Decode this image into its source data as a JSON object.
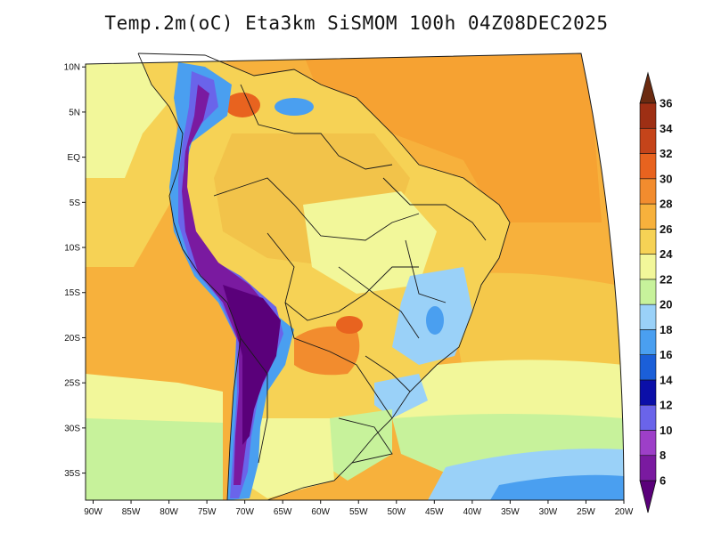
{
  "title": "Temp.2m(oC) Eta3km SiSMOM 100h 04Z08DEC2025",
  "map": {
    "lat_labels": [
      "10N",
      "5N",
      "EQ",
      "5S",
      "10S",
      "15S",
      "20S",
      "25S",
      "30S",
      "35S"
    ],
    "lat_values": [
      10,
      5,
      0,
      -5,
      -10,
      -15,
      -20,
      -25,
      -30,
      -35
    ],
    "lon_labels": [
      "90W",
      "85W",
      "80W",
      "75W",
      "70W",
      "65W",
      "60W",
      "55W",
      "50W",
      "45W",
      "40W",
      "35W",
      "30W",
      "25W",
      "20W"
    ],
    "lon_values": [
      -90,
      -85,
      -80,
      -75,
      -70,
      -65,
      -60,
      -55,
      -50,
      -45,
      -40,
      -35,
      -30,
      -25,
      -20
    ],
    "lat_range": [
      -38,
      11.5
    ],
    "lon_range": [
      -91,
      -20
    ]
  },
  "colorbar": {
    "labels": [
      "6",
      "8",
      "10",
      "12",
      "14",
      "16",
      "18",
      "20",
      "22",
      "24",
      "26",
      "28",
      "30",
      "32",
      "34",
      "36"
    ],
    "colors": [
      "#5a007a",
      "#7a1aa0",
      "#9d3fc8",
      "#6a64ea",
      "#0b0fa8",
      "#1b5fd8",
      "#4a9ff0",
      "#9ad1f8",
      "#c7f29b",
      "#f2f79a",
      "#f6d255",
      "#f7b13c",
      "#f28c2e",
      "#e8631f",
      "#c5441a",
      "#9e2f14",
      "#6b2a10"
    ]
  },
  "colors": {
    "land_outline": "#1a1a1a",
    "background": "#ffffff"
  }
}
